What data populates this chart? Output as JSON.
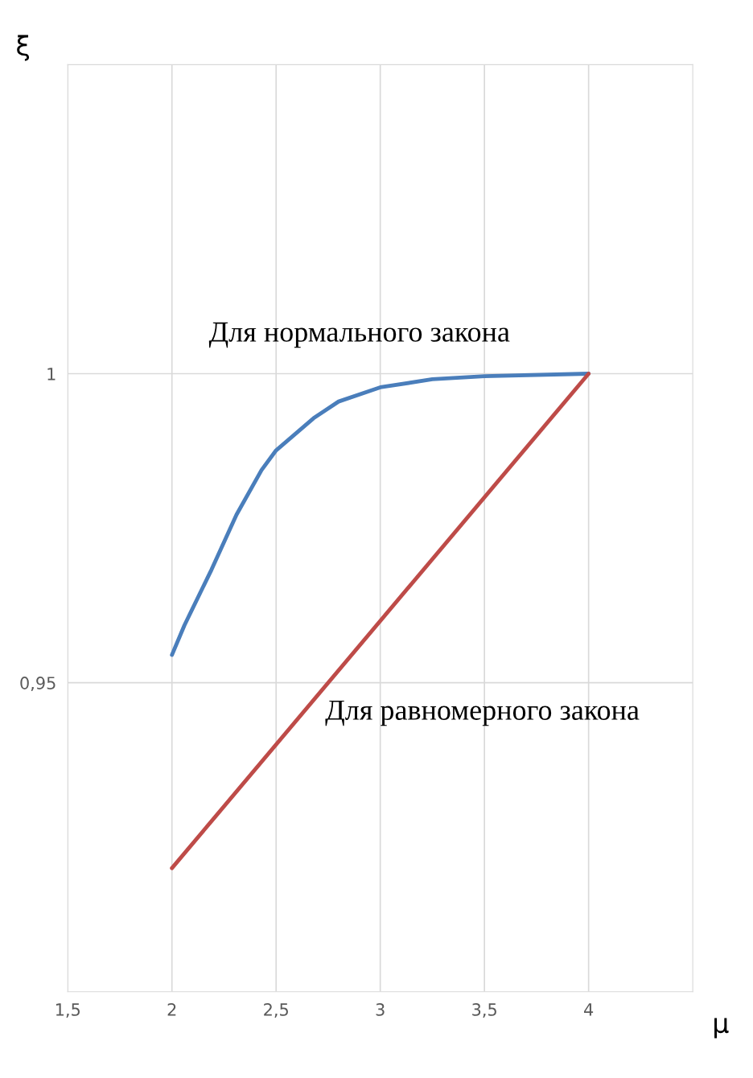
{
  "chart_data": {
    "type": "line",
    "xlabel": "μ",
    "ylabel": "ξ",
    "xlim": [
      1.5,
      4.5
    ],
    "xticks": [
      {
        "value": 1.5,
        "label": "1,5"
      },
      2,
      {
        "value": 2.5,
        "label": "2,5"
      },
      3,
      {
        "value": 3.5,
        "label": "3,5"
      },
      4
    ],
    "ylim": [
      0.9,
      1.05
    ],
    "yticks": [
      {
        "value": 0.95,
        "label": "0,95"
      },
      1
    ],
    "grid": true,
    "legend": false,
    "marker": "none",
    "line_style": "solid",
    "series": [
      {
        "name": "Для нормального закона",
        "color": "#4a7ebb",
        "x": [
          2,
          2.06,
          2.19,
          2.31,
          2.43,
          2.5,
          2.68,
          2.8,
          3,
          3.25,
          3.5,
          4
        ],
        "values": [
          0.9545,
          0.9593,
          0.9683,
          0.9772,
          0.9844,
          0.9876,
          0.9928,
          0.9955,
          0.9978,
          0.9991,
          0.9996,
          1.0
        ]
      },
      {
        "name": "Для равномерного закона",
        "color": "#be4b48",
        "x": [
          2,
          4
        ],
        "values": [
          0.92,
          1.0
        ]
      }
    ]
  }
}
